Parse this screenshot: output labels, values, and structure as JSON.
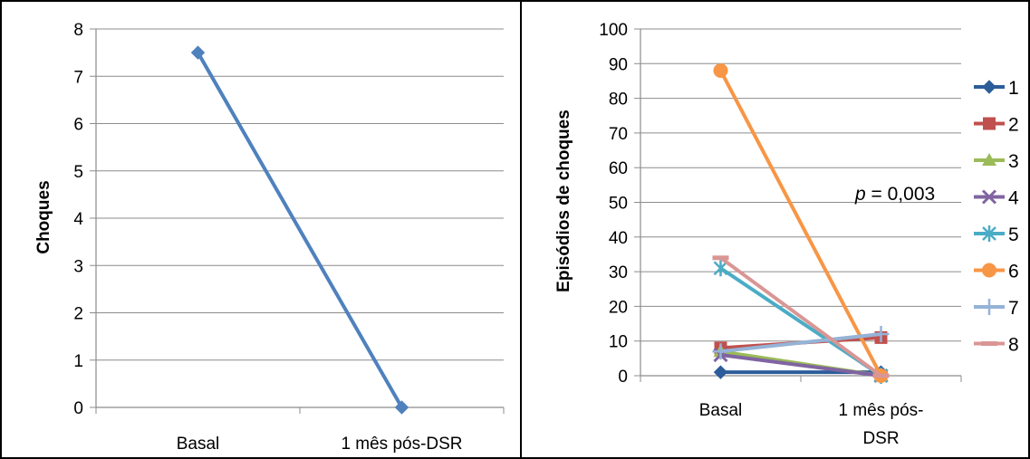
{
  "chart_data": [
    {
      "type": "line",
      "ylabel": "Choques",
      "xlabel": "",
      "categories": [
        "Basal",
        "1 mês pós-DSR"
      ],
      "yticks": [
        "0",
        "1",
        "2",
        "3",
        "4",
        "5",
        "6",
        "7",
        "8"
      ],
      "ylim": [
        0,
        8
      ],
      "grid": true,
      "series": [
        {
          "values": [
            7.5,
            0
          ],
          "color": "#4f81bd",
          "marker": "diamond"
        }
      ]
    },
    {
      "type": "line",
      "ylabel": "Episódios de choques",
      "xlabel": "",
      "categories": [
        "Basal",
        "1 mês pós-DSR"
      ],
      "category_lines": [
        [
          "Basal"
        ],
        [
          "1 mês pós-",
          "DSR"
        ]
      ],
      "yticks": [
        "0",
        "10",
        "20",
        "30",
        "40",
        "50",
        "60",
        "70",
        "80",
        "90",
        "100"
      ],
      "ylim": [
        0,
        100
      ],
      "grid": true,
      "legend_position": "right",
      "annotation": {
        "italic": "p",
        "text": " = 0,003"
      },
      "series": [
        {
          "name": "1",
          "values": [
            1,
            1
          ],
          "color": "#2c5d9a",
          "marker": "diamond"
        },
        {
          "name": "2",
          "values": [
            8,
            11
          ],
          "color": "#c0504d",
          "marker": "square"
        },
        {
          "name": "3",
          "values": [
            7,
            0
          ],
          "color": "#9bbb59",
          "marker": "triangle"
        },
        {
          "name": "4",
          "values": [
            6,
            0
          ],
          "color": "#8064a2",
          "marker": "x"
        },
        {
          "name": "5",
          "values": [
            31,
            0
          ],
          "color": "#4bacc6",
          "marker": "star"
        },
        {
          "name": "6",
          "values": [
            88,
            0
          ],
          "color": "#f79646",
          "marker": "circle"
        },
        {
          "name": "7",
          "values": [
            7,
            12
          ],
          "color": "#95b3d7",
          "marker": "plus"
        },
        {
          "name": "8",
          "values": [
            34,
            0
          ],
          "color": "#d99694",
          "marker": "dash"
        }
      ]
    }
  ]
}
